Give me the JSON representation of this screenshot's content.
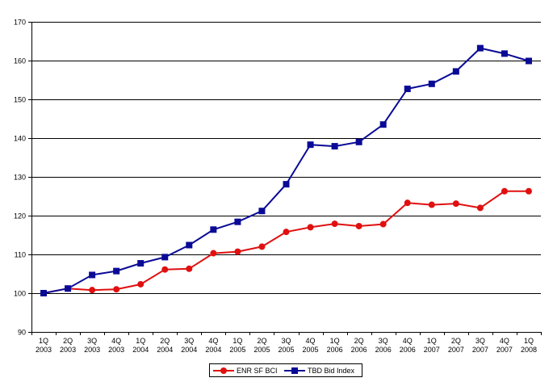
{
  "chart_data": {
    "type": "line",
    "categories": [
      [
        "1Q",
        "2003"
      ],
      [
        "2Q",
        "2003"
      ],
      [
        "3Q",
        "2003"
      ],
      [
        "4Q",
        "2003"
      ],
      [
        "1Q",
        "2004"
      ],
      [
        "2Q",
        "2004"
      ],
      [
        "3Q",
        "2004"
      ],
      [
        "4Q",
        "2004"
      ],
      [
        "1Q",
        "2005"
      ],
      [
        "2Q",
        "2005"
      ],
      [
        "3Q",
        "2005"
      ],
      [
        "4Q",
        "2005"
      ],
      [
        "1Q",
        "2006"
      ],
      [
        "2Q",
        "2006"
      ],
      [
        "3Q",
        "2006"
      ],
      [
        "4Q",
        "2006"
      ],
      [
        "1Q",
        "2007"
      ],
      [
        "2Q",
        "2007"
      ],
      [
        "3Q",
        "2007"
      ],
      [
        "4Q",
        "2007"
      ],
      [
        "1Q",
        "2008"
      ]
    ],
    "series": [
      {
        "name": "ENR SF BCI",
        "color": "#e01010",
        "marker": "circle",
        "values": [
          100,
          101.2,
          100.8,
          101,
          102.3,
          106.1,
          106.3,
          110.3,
          110.7,
          112,
          115.8,
          117,
          117.9,
          117.3,
          117.8,
          123.3,
          122.8,
          123.1,
          122,
          126.3,
          126.3
        ]
      },
      {
        "name": "TBD Bid Index",
        "color": "#0a0a96",
        "marker": "square",
        "values": [
          100,
          101.2,
          104.7,
          105.7,
          107.7,
          109.3,
          112.4,
          116.4,
          118.4,
          121.2,
          128.1,
          138.3,
          137.9,
          139,
          143.5,
          152.7,
          154,
          157.2,
          163.2,
          161.8,
          159.9
        ]
      }
    ],
    "title": "",
    "xlabel": "",
    "ylabel": "",
    "ylim": [
      90,
      170
    ],
    "yticks": [
      90,
      100,
      110,
      120,
      130,
      140,
      150,
      160,
      170
    ],
    "grid": "horizontal",
    "legend_position": "bottom-center"
  }
}
